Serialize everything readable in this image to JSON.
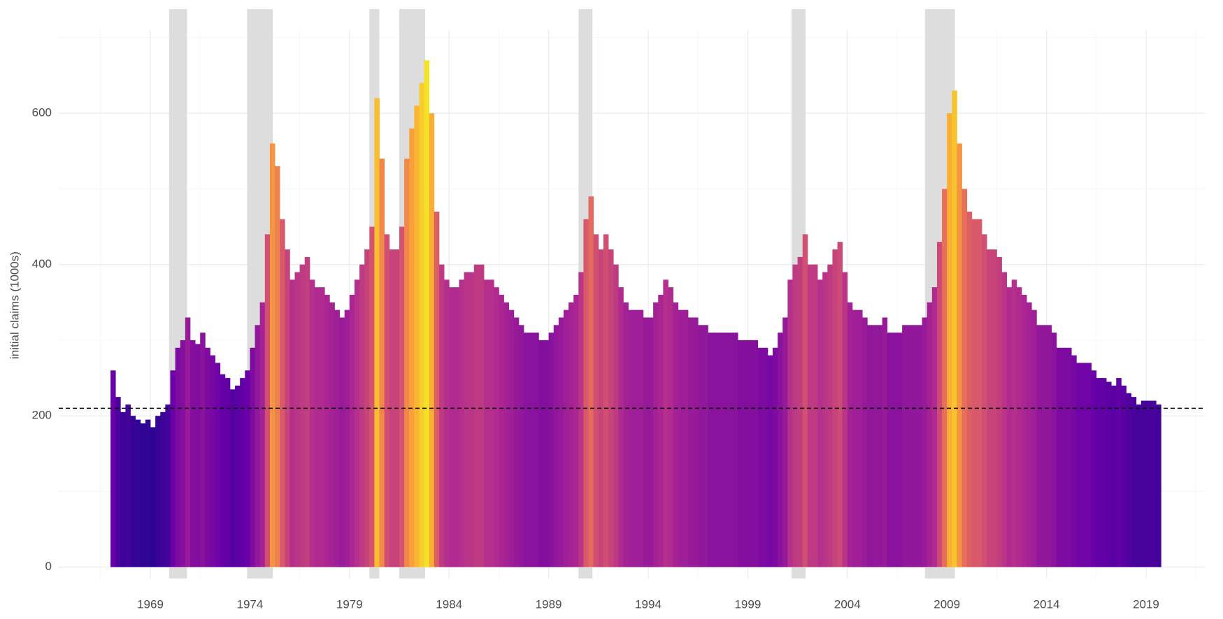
{
  "chart_data": {
    "type": "bar",
    "y_label": "initial claims (1000s)",
    "x": [
      1967.0,
      1967.25,
      1967.5,
      1967.75,
      1968.0,
      1968.25,
      1968.5,
      1968.75,
      1969.0,
      1969.25,
      1969.5,
      1969.75,
      1970.0,
      1970.25,
      1970.5,
      1970.75,
      1971.0,
      1971.25,
      1971.5,
      1971.75,
      1972.0,
      1972.25,
      1972.5,
      1972.75,
      1973.0,
      1973.25,
      1973.5,
      1973.75,
      1974.0,
      1974.25,
      1974.5,
      1974.75,
      1975.0,
      1975.25,
      1975.5,
      1975.75,
      1976.0,
      1976.25,
      1976.5,
      1976.75,
      1977.0,
      1977.25,
      1977.5,
      1977.75,
      1978.0,
      1978.25,
      1978.5,
      1978.75,
      1979.0,
      1979.25,
      1979.5,
      1979.75,
      1980.0,
      1980.25,
      1980.5,
      1980.75,
      1981.0,
      1981.25,
      1981.5,
      1981.75,
      1982.0,
      1982.25,
      1982.5,
      1982.75,
      1983.0,
      1983.25,
      1983.5,
      1983.75,
      1984.0,
      1984.25,
      1984.5,
      1984.75,
      1985.0,
      1985.25,
      1985.5,
      1985.75,
      1986.0,
      1986.25,
      1986.5,
      1986.75,
      1987.0,
      1987.25,
      1987.5,
      1987.75,
      1988.0,
      1988.25,
      1988.5,
      1988.75,
      1989.0,
      1989.25,
      1989.5,
      1989.75,
      1990.0,
      1990.25,
      1990.5,
      1990.75,
      1991.0,
      1991.25,
      1991.5,
      1991.75,
      1992.0,
      1992.25,
      1992.5,
      1992.75,
      1993.0,
      1993.25,
      1993.5,
      1993.75,
      1994.0,
      1994.25,
      1994.5,
      1994.75,
      1995.0,
      1995.25,
      1995.5,
      1995.75,
      1996.0,
      1996.25,
      1996.5,
      1996.75,
      1997.0,
      1997.25,
      1997.5,
      1997.75,
      1998.0,
      1998.25,
      1998.5,
      1998.75,
      1999.0,
      1999.25,
      1999.5,
      1999.75,
      2000.0,
      2000.25,
      2000.5,
      2000.75,
      2001.0,
      2001.25,
      2001.5,
      2001.75,
      2002.0,
      2002.25,
      2002.5,
      2002.75,
      2003.0,
      2003.25,
      2003.5,
      2003.75,
      2004.0,
      2004.25,
      2004.5,
      2004.75,
      2005.0,
      2005.25,
      2005.5,
      2005.75,
      2006.0,
      2006.25,
      2006.5,
      2006.75,
      2007.0,
      2007.25,
      2007.5,
      2007.75,
      2008.0,
      2008.25,
      2008.5,
      2008.75,
      2009.0,
      2009.25,
      2009.5,
      2009.75,
      2010.0,
      2010.25,
      2010.5,
      2010.75,
      2011.0,
      2011.25,
      2011.5,
      2011.75,
      2012.0,
      2012.25,
      2012.5,
      2012.75,
      2013.0,
      2013.25,
      2013.5,
      2013.75,
      2014.0,
      2014.25,
      2014.5,
      2014.75,
      2015.0,
      2015.25,
      2015.5,
      2015.75,
      2016.0,
      2016.25,
      2016.5,
      2016.75,
      2017.0,
      2017.25,
      2017.5,
      2017.75,
      2018.0,
      2018.25,
      2018.5,
      2018.75,
      2019.0,
      2019.25,
      2019.5
    ],
    "values": [
      260,
      225,
      205,
      215,
      200,
      195,
      190,
      195,
      185,
      200,
      205,
      215,
      260,
      290,
      300,
      330,
      300,
      295,
      310,
      290,
      280,
      270,
      255,
      250,
      235,
      240,
      250,
      260,
      290,
      320,
      350,
      440,
      560,
      530,
      460,
      420,
      380,
      390,
      400,
      410,
      380,
      370,
      370,
      360,
      350,
      340,
      330,
      340,
      360,
      380,
      400,
      420,
      450,
      620,
      540,
      440,
      420,
      420,
      450,
      540,
      580,
      610,
      640,
      670,
      600,
      470,
      400,
      380,
      370,
      370,
      380,
      390,
      390,
      400,
      400,
      380,
      380,
      370,
      360,
      350,
      340,
      330,
      320,
      310,
      310,
      310,
      300,
      300,
      310,
      320,
      330,
      340,
      350,
      360,
      390,
      460,
      490,
      440,
      420,
      440,
      420,
      400,
      370,
      350,
      340,
      340,
      340,
      330,
      330,
      350,
      360,
      380,
      370,
      350,
      340,
      340,
      330,
      330,
      320,
      320,
      310,
      310,
      310,
      310,
      310,
      310,
      300,
      300,
      300,
      300,
      290,
      290,
      280,
      290,
      310,
      330,
      380,
      400,
      410,
      440,
      400,
      400,
      380,
      390,
      400,
      420,
      430,
      390,
      350,
      340,
      340,
      330,
      320,
      320,
      320,
      330,
      310,
      310,
      310,
      320,
      320,
      320,
      320,
      330,
      350,
      370,
      430,
      500,
      600,
      630,
      560,
      500,
      470,
      460,
      460,
      440,
      420,
      420,
      410,
      390,
      370,
      380,
      370,
      360,
      350,
      340,
      320,
      320,
      320,
      310,
      290,
      290,
      290,
      280,
      270,
      270,
      270,
      260,
      250,
      250,
      245,
      240,
      250,
      240,
      230,
      225,
      215,
      220,
      220,
      220,
      215
    ],
    "colormap": [
      "#0d0887",
      "#6a00a8",
      "#b12a90",
      "#e16462",
      "#fca636",
      "#f0f921"
    ],
    "color_lim": [
      150,
      700
    ],
    "recessions": [
      [
        1969.94,
        1970.84
      ],
      [
        1973.86,
        1975.15
      ],
      [
        1980.0,
        1980.5
      ],
      [
        1981.5,
        1982.8
      ],
      [
        1990.5,
        1991.2
      ],
      [
        2001.2,
        2001.9
      ],
      [
        2007.9,
        2009.4
      ]
    ],
    "recession_color": "#dddddd",
    "hline": 210,
    "xlim": [
      1964.4,
      2021.95
    ],
    "ylim": [
      -15,
      710
    ],
    "xticks": [
      1969,
      1974,
      1979,
      1984,
      1989,
      1994,
      1999,
      2004,
      2009,
      2014,
      2019
    ],
    "yticks": [
      0,
      200,
      400,
      600
    ],
    "x_minor_grid": [
      1966.5,
      1971.5,
      1976.5,
      1981.5,
      1986.5,
      1991.5,
      1996.5,
      2001.5,
      2006.5,
      2011.5,
      2016.5,
      2021.5
    ],
    "y_minor_grid": [
      100,
      300,
      500,
      700
    ],
    "grid": true
  }
}
